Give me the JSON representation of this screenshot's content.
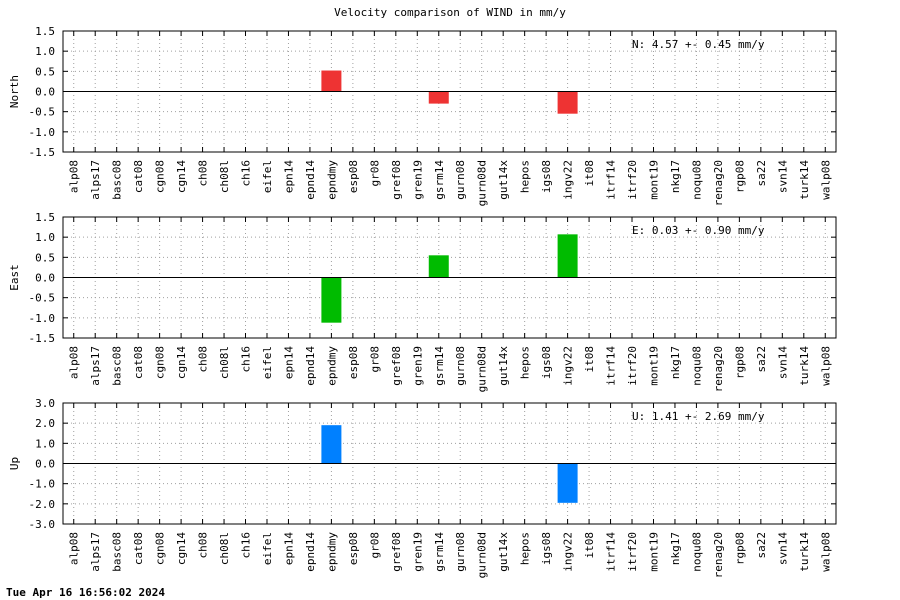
{
  "title": "Velocity comparison of WIND in mm/y",
  "timestamp": "Tue Apr 16 16:56:02 2024",
  "chart_data": [
    {
      "type": "bar",
      "ylabel": "North",
      "ylim": [
        -1.5,
        1.5
      ],
      "yticks": [
        1.5,
        1.0,
        0.5,
        0.0,
        -0.5,
        -1.0,
        -1.5
      ],
      "ytick_labels": [
        "1.5",
        "1.0",
        "0.5",
        "0.0",
        "-0.5",
        "-1.0",
        "-1.5"
      ],
      "stat_text": "N:   4.57 +-  0.45 mm/y",
      "color": "#ee3333",
      "grid": true,
      "categories": [
        "alp08",
        "alps17",
        "basc08",
        "cat08",
        "cgn08",
        "cgn14",
        "ch08",
        "ch08l",
        "ch16",
        "eifel",
        "epn14",
        "epnd14",
        "epndmy",
        "esp08",
        "gr08",
        "gref08",
        "gren19",
        "gsrm14",
        "gurn08",
        "gurn08d",
        "gut14x",
        "hepos",
        "igs08",
        "ingv22",
        "it08",
        "itrf14",
        "itrf20",
        "mont19",
        "nkg17",
        "noqu08",
        "renag20",
        "rgp08",
        "sa22",
        "svn14",
        "turk14",
        "walp08"
      ],
      "values": [
        null,
        null,
        null,
        null,
        null,
        null,
        null,
        null,
        null,
        null,
        null,
        null,
        0.52,
        null,
        null,
        null,
        null,
        -0.3,
        null,
        null,
        null,
        null,
        null,
        -0.55,
        null,
        null,
        null,
        null,
        null,
        null,
        null,
        null,
        null,
        null,
        null,
        null
      ]
    },
    {
      "type": "bar",
      "ylabel": "East",
      "ylim": [
        -1.5,
        1.5
      ],
      "yticks": [
        1.5,
        1.0,
        0.5,
        0.0,
        -0.5,
        -1.0,
        -1.5
      ],
      "ytick_labels": [
        "1.5",
        "1.0",
        "0.5",
        "0.0",
        "-0.5",
        "-1.0",
        "-1.5"
      ],
      "stat_text": "E:   0.03 +-  0.90 mm/y",
      "color": "#00bb00",
      "grid": true,
      "categories": [
        "alp08",
        "alps17",
        "basc08",
        "cat08",
        "cgn08",
        "cgn14",
        "ch08",
        "ch08l",
        "ch16",
        "eifel",
        "epn14",
        "epnd14",
        "epndmy",
        "esp08",
        "gr08",
        "gref08",
        "gren19",
        "gsrm14",
        "gurn08",
        "gurn08d",
        "gut14x",
        "hepos",
        "igs08",
        "ingv22",
        "it08",
        "itrf14",
        "itrf20",
        "mont19",
        "nkg17",
        "noqu08",
        "renag20",
        "rgp08",
        "sa22",
        "svn14",
        "turk14",
        "walp08"
      ],
      "values": [
        null,
        null,
        null,
        null,
        null,
        null,
        null,
        null,
        null,
        null,
        null,
        null,
        -1.12,
        null,
        null,
        null,
        null,
        0.55,
        null,
        null,
        null,
        null,
        null,
        1.07,
        null,
        null,
        null,
        null,
        null,
        null,
        null,
        null,
        null,
        null,
        null,
        null
      ]
    },
    {
      "type": "bar",
      "ylabel": "Up",
      "ylim": [
        -3.0,
        3.0
      ],
      "yticks": [
        3.0,
        2.0,
        1.0,
        0.0,
        -1.0,
        -2.0,
        -3.0
      ],
      "ytick_labels": [
        "3.0",
        "2.0",
        "1.0",
        "0.0",
        "-1.0",
        "-2.0",
        "-3.0"
      ],
      "stat_text": "U:   1.41 +-  2.69 mm/y",
      "color": "#0080ff",
      "grid": true,
      "categories": [
        "alp08",
        "alps17",
        "basc08",
        "cat08",
        "cgn08",
        "cgn14",
        "ch08",
        "ch08l",
        "ch16",
        "eifel",
        "epn14",
        "epnd14",
        "epndmy",
        "esp08",
        "gr08",
        "gref08",
        "gren19",
        "gsrm14",
        "gurn08",
        "gurn08d",
        "gut14x",
        "hepos",
        "igs08",
        "ingv22",
        "it08",
        "itrf14",
        "itrf20",
        "mont19",
        "nkg17",
        "noqu08",
        "renag20",
        "rgp08",
        "sa22",
        "svn14",
        "turk14",
        "walp08"
      ],
      "values": [
        null,
        null,
        null,
        null,
        null,
        null,
        null,
        null,
        null,
        null,
        null,
        null,
        1.9,
        null,
        null,
        null,
        null,
        null,
        null,
        null,
        null,
        null,
        null,
        -1.95,
        null,
        null,
        null,
        null,
        null,
        null,
        null,
        null,
        null,
        null,
        null,
        null
      ]
    }
  ]
}
